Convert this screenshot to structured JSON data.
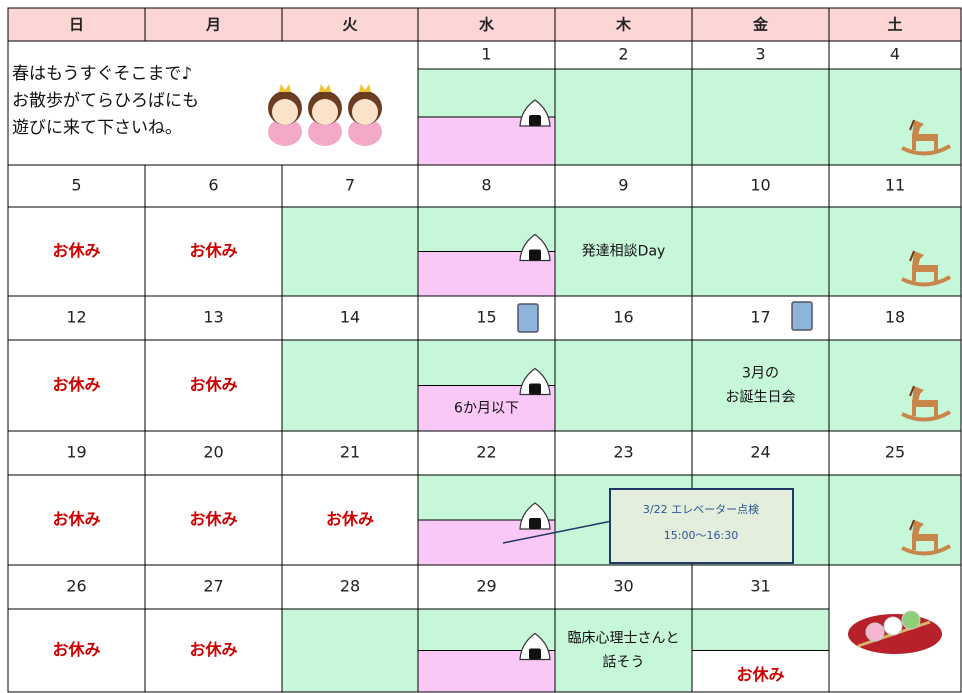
{
  "header": {
    "days": [
      "日",
      "月",
      "火",
      "水",
      "木",
      "金",
      "土"
    ]
  },
  "message": [
    "春はもうすぐそこまで♪",
    "お散歩がてらひろばにも",
    "遊びに来て下さいね。"
  ],
  "weeks": [
    {
      "dates": [
        null,
        null,
        null,
        1,
        2,
        3,
        4
      ],
      "events": [
        null,
        null,
        null,
        null,
        null,
        null,
        null
      ]
    },
    {
      "dates": [
        5,
        6,
        7,
        8,
        9,
        10,
        11
      ],
      "events": [
        [
          "お休み"
        ],
        [
          "お休み"
        ],
        null,
        null,
        [
          "発達相談Day"
        ],
        null,
        null
      ]
    },
    {
      "dates": [
        12,
        13,
        14,
        15,
        16,
        17,
        18
      ],
      "events": [
        [
          "お休み"
        ],
        [
          "お休み"
        ],
        null,
        [
          "6か月以下"
        ],
        null,
        [
          "3月の",
          "お誕生日会"
        ],
        null
      ]
    },
    {
      "dates": [
        19,
        20,
        21,
        22,
        23,
        24,
        25
      ],
      "events": [
        [
          "お休み"
        ],
        [
          "お休み"
        ],
        [
          "お休み"
        ],
        null,
        null,
        null,
        null
      ]
    },
    {
      "dates": [
        26,
        27,
        28,
        29,
        30,
        31,
        null
      ],
      "events": [
        [
          "お休み"
        ],
        [
          "お休み"
        ],
        null,
        null,
        [
          "臨床心理士さんと",
          "話そう"
        ],
        [
          "お休み"
        ],
        null
      ]
    }
  ],
  "note": {
    "title": "3/22 エレベーター点検",
    "time": "15:00～16:30"
  }
}
